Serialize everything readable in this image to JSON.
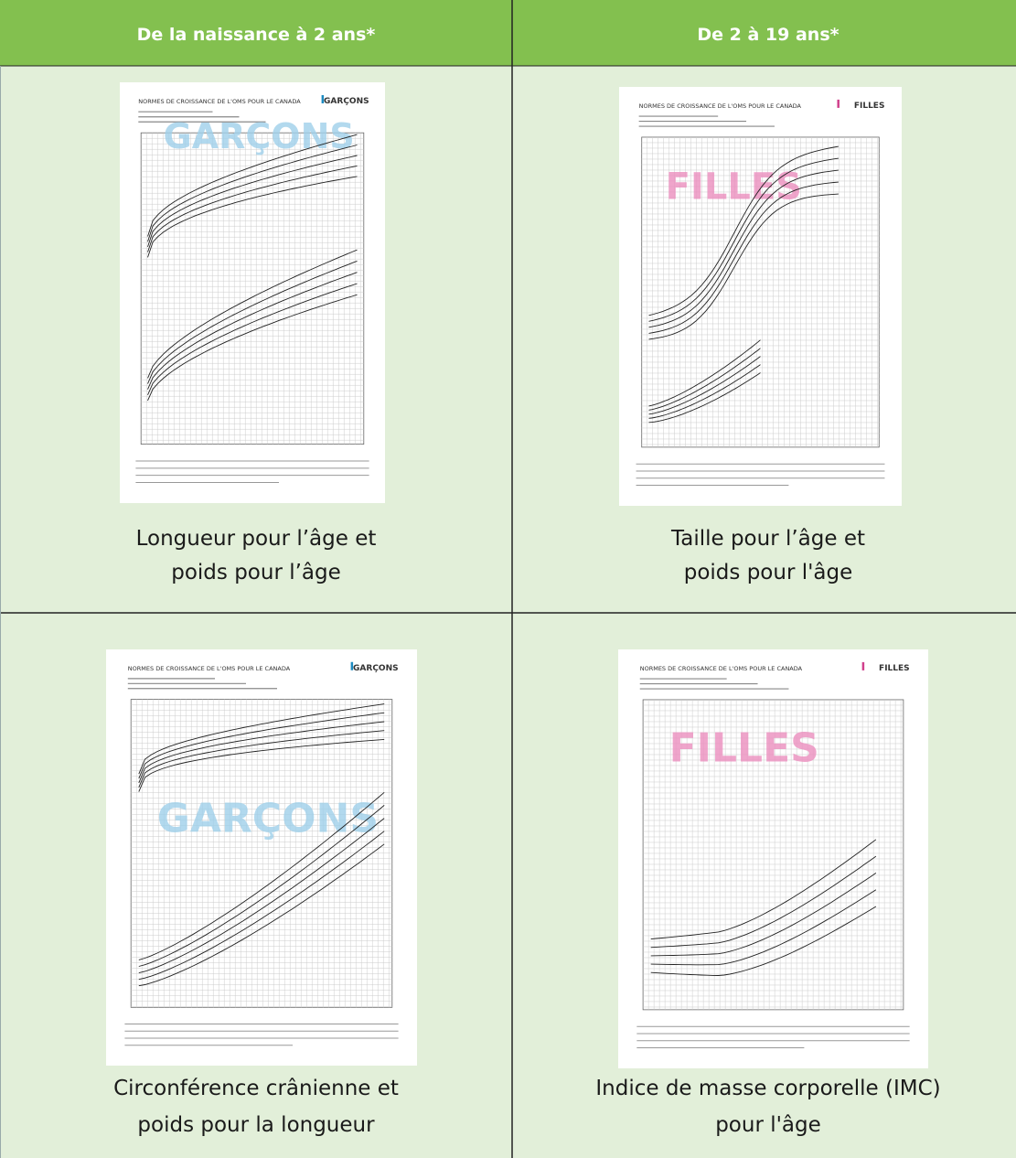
{
  "table": {
    "header": [
      "De la naissance à 2 ans*",
      "De 2 à 19 ans*"
    ],
    "rows": [
      [
        {
          "thumbnail": {
            "title": "NORMES DE CROISSANCE DE L'OMS POUR LE CANADA",
            "label": "GARÇONS",
            "watermark": "GARÇONS"
          },
          "caption": [
            "Longueur pour l’âge et",
            "poids pour l’âge"
          ]
        },
        {
          "thumbnail": {
            "title": "NORMES DE CROISSANCE DE L'OMS POUR LE CANADA",
            "label": "FILLES",
            "watermark": "FILLES"
          },
          "caption": [
            "Taille pour l’âge et",
            "poids pour l'âge"
          ]
        }
      ],
      [
        {
          "thumbnail": {
            "title": "NORMES DE CROISSANCE DE L'OMS POUR LE CANADA",
            "label": "GARÇONS",
            "watermark": "GARÇONS"
          },
          "caption": [
            "Circonférence crânienne et",
            "poids pour la longueur"
          ]
        },
        {
          "thumbnail": {
            "title": "NORMES DE CROISSANCE DE L'OMS POUR LE CANADA",
            "label": "FILLES",
            "watermark": "FILLES"
          },
          "caption": [
            "Indice de masse corporelle (IMC)",
            "pour l'âge"
          ]
        }
      ]
    ]
  }
}
